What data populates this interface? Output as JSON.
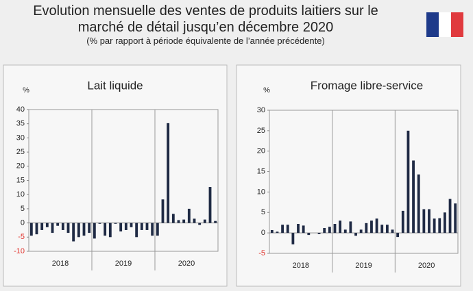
{
  "header": {
    "title": "Evolution mensuelle des ventes de produits laitiers sur le marché de détail jusqu’en décembre 2020",
    "subtitle": "(% par rapport à période équivalente de l’année précédente)"
  },
  "chart_data": [
    {
      "type": "bar",
      "title": "Lait liquide",
      "y_label": "%",
      "color": "#1f2a44",
      "negative_tick_color": "#e0302a",
      "groups": [
        "2018",
        "2019",
        "2020"
      ],
      "categories": [
        null,
        null,
        null,
        null,
        null,
        null,
        null,
        null,
        null,
        null,
        null,
        null,
        null,
        null,
        null,
        null,
        null,
        null,
        null,
        null,
        null,
        null,
        null,
        null,
        null,
        null,
        null,
        null,
        null,
        null,
        null,
        null,
        null,
        null,
        null,
        null
      ],
      "values": [
        -4.5,
        -4,
        -2.5,
        -1.5,
        -3.5,
        -1,
        -2.5,
        -3.5,
        -6.5,
        -5,
        -4.5,
        -3.5,
        -5.5,
        -0.3,
        -4.5,
        -5,
        -0.3,
        -3,
        -2.5,
        -1.5,
        -5,
        -2.5,
        -2.5,
        -4.5,
        -4.5,
        8.3,
        35.2,
        3.2,
        1,
        1.2,
        5,
        1.5,
        -0.7,
        1.2,
        12.7,
        0.7
      ],
      "ylim": [
        -10,
        40
      ],
      "yticks": [
        -10,
        -5,
        0,
        5,
        10,
        15,
        20,
        25,
        30,
        35,
        40
      ]
    },
    {
      "type": "bar",
      "title": "Fromage libre-service",
      "y_label": "%",
      "color": "#1f2a44",
      "negative_tick_color": "#e0302a",
      "groups": [
        "2018",
        "2019",
        "2020"
      ],
      "categories": [
        null,
        null,
        null,
        null,
        null,
        null,
        null,
        null,
        null,
        null,
        null,
        null,
        null,
        null,
        null,
        null,
        null,
        null,
        null,
        null,
        null,
        null,
        null,
        null,
        null,
        null,
        null,
        null,
        null,
        null,
        null,
        null,
        null,
        null,
        null,
        null
      ],
      "values": [
        0.7,
        0.3,
        2,
        2,
        -2.8,
        2.2,
        1.8,
        -0.5,
        0,
        -0.3,
        1.2,
        1.5,
        2.2,
        3,
        0.8,
        2.8,
        -0.7,
        0.8,
        2.4,
        3,
        3.5,
        2,
        2,
        0.8,
        -1,
        5.4,
        25,
        17.7,
        14.3,
        5.8,
        5.8,
        3.5,
        3.6,
        5,
        8.3,
        7.2
      ],
      "ylim": [
        -5,
        30
      ],
      "yticks": [
        -5,
        0,
        5,
        10,
        15,
        20,
        25,
        30
      ]
    }
  ]
}
